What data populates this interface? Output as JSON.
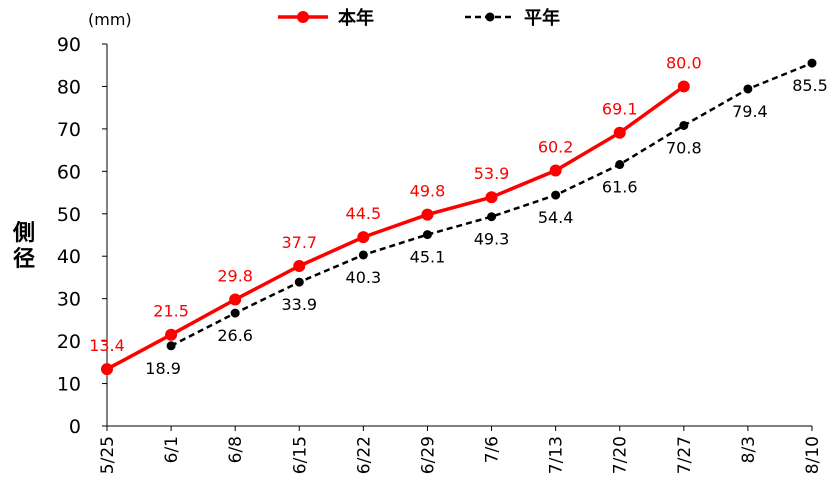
{
  "chart_data": {
    "type": "line",
    "unit": "(mm)",
    "ylabel": "側径",
    "ylim": [
      0,
      90
    ],
    "yticks": [
      0,
      10,
      20,
      30,
      40,
      50,
      60,
      70,
      80,
      90
    ],
    "categories": [
      "5/25",
      "6/1",
      "6/8",
      "6/15",
      "6/22",
      "6/29",
      "7/6",
      "7/13",
      "7/20",
      "7/27",
      "8/3",
      "8/10"
    ],
    "legend_position": "top",
    "series": [
      {
        "name": "本年",
        "color": "#ff0000",
        "style": "solid",
        "values": [
          13.4,
          21.5,
          29.8,
          37.7,
          44.5,
          49.8,
          53.9,
          60.2,
          69.1,
          80.0,
          null,
          null
        ],
        "labels": [
          "13.4",
          "21.5",
          "29.8",
          "37.7",
          "44.5",
          "49.8",
          "53.9",
          "60.2",
          "69.1",
          "80.0",
          "",
          ""
        ]
      },
      {
        "name": "平年",
        "color": "#000000",
        "style": "dashed",
        "values": [
          null,
          18.9,
          26.6,
          33.9,
          40.3,
          45.1,
          49.3,
          54.4,
          61.6,
          70.8,
          79.4,
          85.5
        ],
        "labels": [
          "",
          "18.9",
          "26.6",
          "33.9",
          "40.3",
          "45.1",
          "49.3",
          "54.4",
          "61.6",
          "70.8",
          "79.4",
          "85.5"
        ]
      }
    ]
  }
}
